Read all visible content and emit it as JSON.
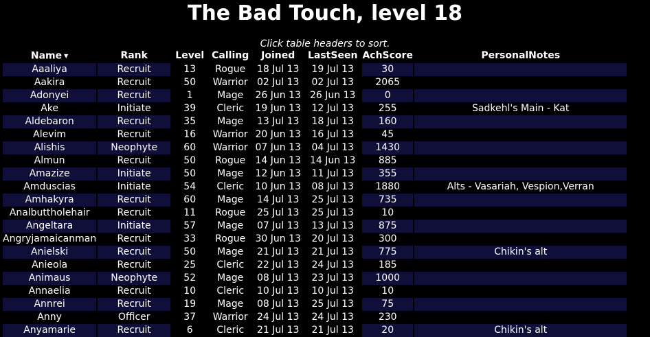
{
  "page": {
    "title": "The Bad Touch, level 18",
    "sort_hint": "Click table headers to sort.",
    "sort_indicator": "▼"
  },
  "colors": {
    "background": "#000000",
    "text": "#ffffff",
    "row_stripe": "#0f0f3a"
  },
  "table": {
    "columns": [
      "Name",
      "Rank",
      "Level",
      "Calling",
      "Joined",
      "LastSeen",
      "AchScore",
      "PersonalNotes"
    ],
    "rows": [
      {
        "name": "Aaaliya",
        "rank": "Recruit",
        "level": "13",
        "calling": "Rogue",
        "joined": "18 Jul 13",
        "last_seen": "19 Jul 13",
        "ach_score": "30",
        "notes": ""
      },
      {
        "name": "Aakira",
        "rank": "Recruit",
        "level": "50",
        "calling": "Warrior",
        "joined": "02 Jul 13",
        "last_seen": "02 Jul 13",
        "ach_score": "2065",
        "notes": ""
      },
      {
        "name": "Adonyei",
        "rank": "Recruit",
        "level": "1",
        "calling": "Mage",
        "joined": "26 Jun 13",
        "last_seen": "26 Jun 13",
        "ach_score": "0",
        "notes": ""
      },
      {
        "name": "Ake",
        "rank": "Initiate",
        "level": "39",
        "calling": "Cleric",
        "joined": "19 Jun 13",
        "last_seen": "12 Jul 13",
        "ach_score": "255",
        "notes": "Sadkehl's Main - Kat"
      },
      {
        "name": "Aldebaron",
        "rank": "Recruit",
        "level": "35",
        "calling": "Mage",
        "joined": "13 Jul 13",
        "last_seen": "18 Jul 13",
        "ach_score": "160",
        "notes": ""
      },
      {
        "name": "Alevim",
        "rank": "Recruit",
        "level": "16",
        "calling": "Warrior",
        "joined": "20 Jun 13",
        "last_seen": "16 Jul 13",
        "ach_score": "45",
        "notes": ""
      },
      {
        "name": "Alishis",
        "rank": "Neophyte",
        "level": "60",
        "calling": "Warrior",
        "joined": "07 Jun 13",
        "last_seen": "04 Jul 13",
        "ach_score": "1430",
        "notes": ""
      },
      {
        "name": "Almun",
        "rank": "Recruit",
        "level": "50",
        "calling": "Rogue",
        "joined": "14 Jun 13",
        "last_seen": "14 Jun 13",
        "ach_score": "885",
        "notes": ""
      },
      {
        "name": "Amazize",
        "rank": "Initiate",
        "level": "50",
        "calling": "Mage",
        "joined": "12 Jun 13",
        "last_seen": "11 Jul 13",
        "ach_score": "355",
        "notes": ""
      },
      {
        "name": "Amduscias",
        "rank": "Initiate",
        "level": "54",
        "calling": "Cleric",
        "joined": "10 Jun 13",
        "last_seen": "08 Jul 13",
        "ach_score": "1880",
        "notes": "Alts - Vasariah, Vespion,Verran"
      },
      {
        "name": "Amhakyra",
        "rank": "Recruit",
        "level": "60",
        "calling": "Mage",
        "joined": "14 Jul 13",
        "last_seen": "25 Jul 13",
        "ach_score": "735",
        "notes": ""
      },
      {
        "name": "Analbuttholehair",
        "rank": "Recruit",
        "level": "11",
        "calling": "Rogue",
        "joined": "25 Jul 13",
        "last_seen": "25 Jul 13",
        "ach_score": "10",
        "notes": ""
      },
      {
        "name": "Angeltara",
        "rank": "Initiate",
        "level": "57",
        "calling": "Mage",
        "joined": "07 Jul 13",
        "last_seen": "13 Jul 13",
        "ach_score": "875",
        "notes": ""
      },
      {
        "name": "Angryjamaicanman",
        "rank": "Recruit",
        "level": "33",
        "calling": "Rogue",
        "joined": "30 Jun 13",
        "last_seen": "20 Jul 13",
        "ach_score": "300",
        "notes": ""
      },
      {
        "name": "Anielski",
        "rank": "Recruit",
        "level": "50",
        "calling": "Mage",
        "joined": "21 Jul 13",
        "last_seen": "21 Jul 13",
        "ach_score": "775",
        "notes": "Chikin's alt"
      },
      {
        "name": "Anieola",
        "rank": "Recruit",
        "level": "25",
        "calling": "Cleric",
        "joined": "22 Jul 13",
        "last_seen": "24 Jul 13",
        "ach_score": "185",
        "notes": ""
      },
      {
        "name": "Animaus",
        "rank": "Neophyte",
        "level": "52",
        "calling": "Mage",
        "joined": "08 Jul 13",
        "last_seen": "23 Jul 13",
        "ach_score": "1000",
        "notes": ""
      },
      {
        "name": "Annaelia",
        "rank": "Recruit",
        "level": "10",
        "calling": "Cleric",
        "joined": "10 Jul 13",
        "last_seen": "10 Jul 13",
        "ach_score": "10",
        "notes": ""
      },
      {
        "name": "Annrei",
        "rank": "Recruit",
        "level": "19",
        "calling": "Mage",
        "joined": "08 Jul 13",
        "last_seen": "25 Jul 13",
        "ach_score": "75",
        "notes": ""
      },
      {
        "name": "Anny",
        "rank": "Officer",
        "level": "37",
        "calling": "Warrior",
        "joined": "24 Jul 13",
        "last_seen": "24 Jul 13",
        "ach_score": "230",
        "notes": ""
      },
      {
        "name": "Anyamarie",
        "rank": "Recruit",
        "level": "6",
        "calling": "Cleric",
        "joined": "21 Jul 13",
        "last_seen": "21 Jul 13",
        "ach_score": "20",
        "notes": "Chikin's alt"
      }
    ]
  }
}
